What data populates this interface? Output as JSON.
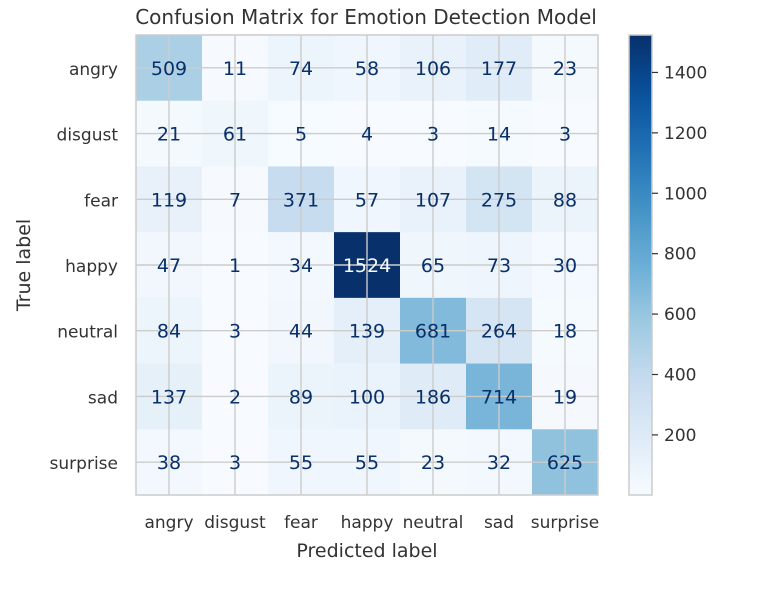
{
  "chart_data": {
    "type": "heatmap",
    "title": "Confusion Matrix for Emotion Detection Model",
    "xlabel": "Predicted label",
    "ylabel": "True label",
    "x_categories": [
      "angry",
      "disgust",
      "fear",
      "happy",
      "neutral",
      "sad",
      "surprise"
    ],
    "y_categories": [
      "angry",
      "disgust",
      "fear",
      "happy",
      "neutral",
      "sad",
      "surprise"
    ],
    "values": [
      [
        509,
        11,
        74,
        58,
        106,
        177,
        23
      ],
      [
        21,
        61,
        5,
        4,
        3,
        14,
        3
      ],
      [
        119,
        7,
        371,
        57,
        107,
        275,
        88
      ],
      [
        47,
        1,
        34,
        1524,
        65,
        73,
        30
      ],
      [
        84,
        3,
        44,
        139,
        681,
        264,
        18
      ],
      [
        137,
        2,
        89,
        100,
        186,
        714,
        19
      ],
      [
        38,
        3,
        55,
        55,
        23,
        32,
        625
      ]
    ],
    "colorscale": "Blues",
    "vmin": 1,
    "vmax": 1524,
    "colorbar_ticks": [
      200,
      400,
      600,
      800,
      1000,
      1200,
      1400
    ],
    "grid": true
  }
}
